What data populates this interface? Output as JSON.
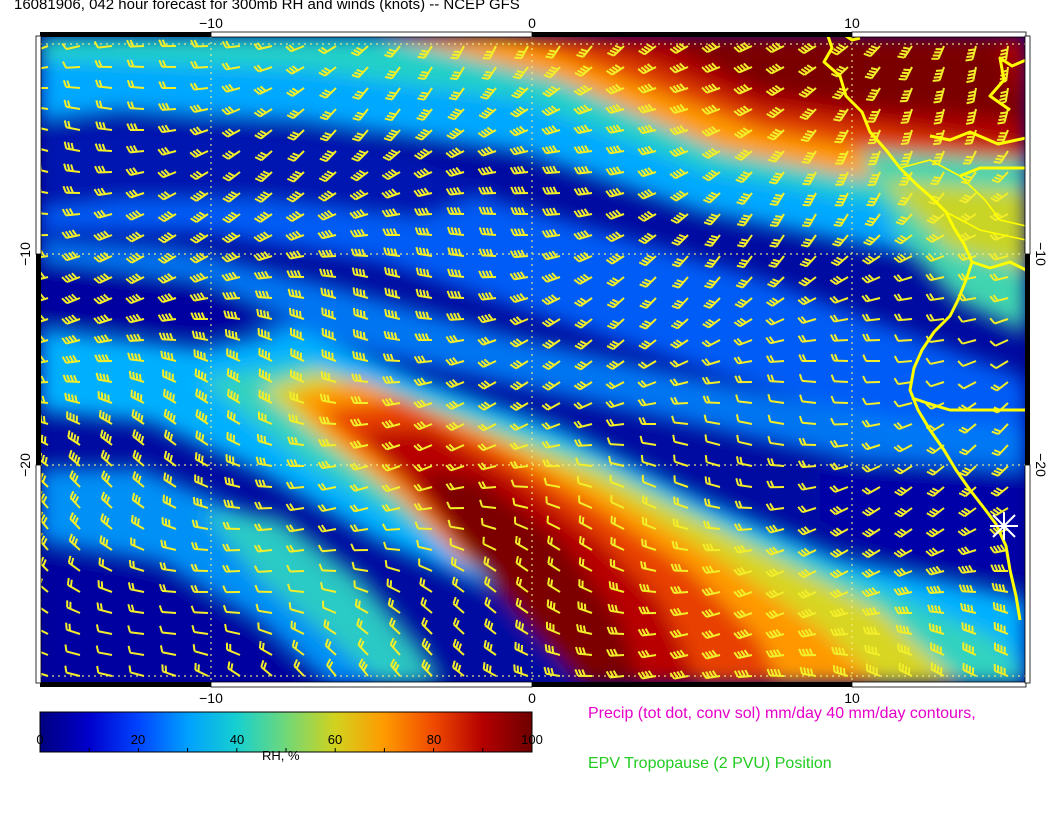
{
  "title": "16081906, 042 hour forecast for 300mb RH and winds (knots) -- NCEP GFS",
  "map": {
    "lon_ticks": [
      "−10",
      "0",
      "10"
    ],
    "lat_ticks": [
      "−10",
      "−20"
    ],
    "lon_range": [
      -15.5,
      15.5
    ],
    "lat_range": [
      -30.5,
      0.5
    ],
    "marker_icon": "star-marker-icon",
    "coastline_color": "#ffff00",
    "barb_color": "#f2ee2a"
  },
  "colorbar": {
    "title": "RH, %",
    "ticks": [
      "0",
      "20",
      "40",
      "60",
      "80",
      "100"
    ],
    "min": 0,
    "max": 100,
    "colors": [
      "#00007f",
      "#0000cc",
      "#0044ff",
      "#00a0ff",
      "#16d0d0",
      "#70d878",
      "#d2d21e",
      "#ff9a00",
      "#f04a00",
      "#b40000",
      "#6e0000"
    ]
  },
  "legend": {
    "precip": "Precip (tot dot, conv sol) mm/day 40 mm/day contours,",
    "epv": "EPV Tropopause (2 PVU) Position"
  }
}
